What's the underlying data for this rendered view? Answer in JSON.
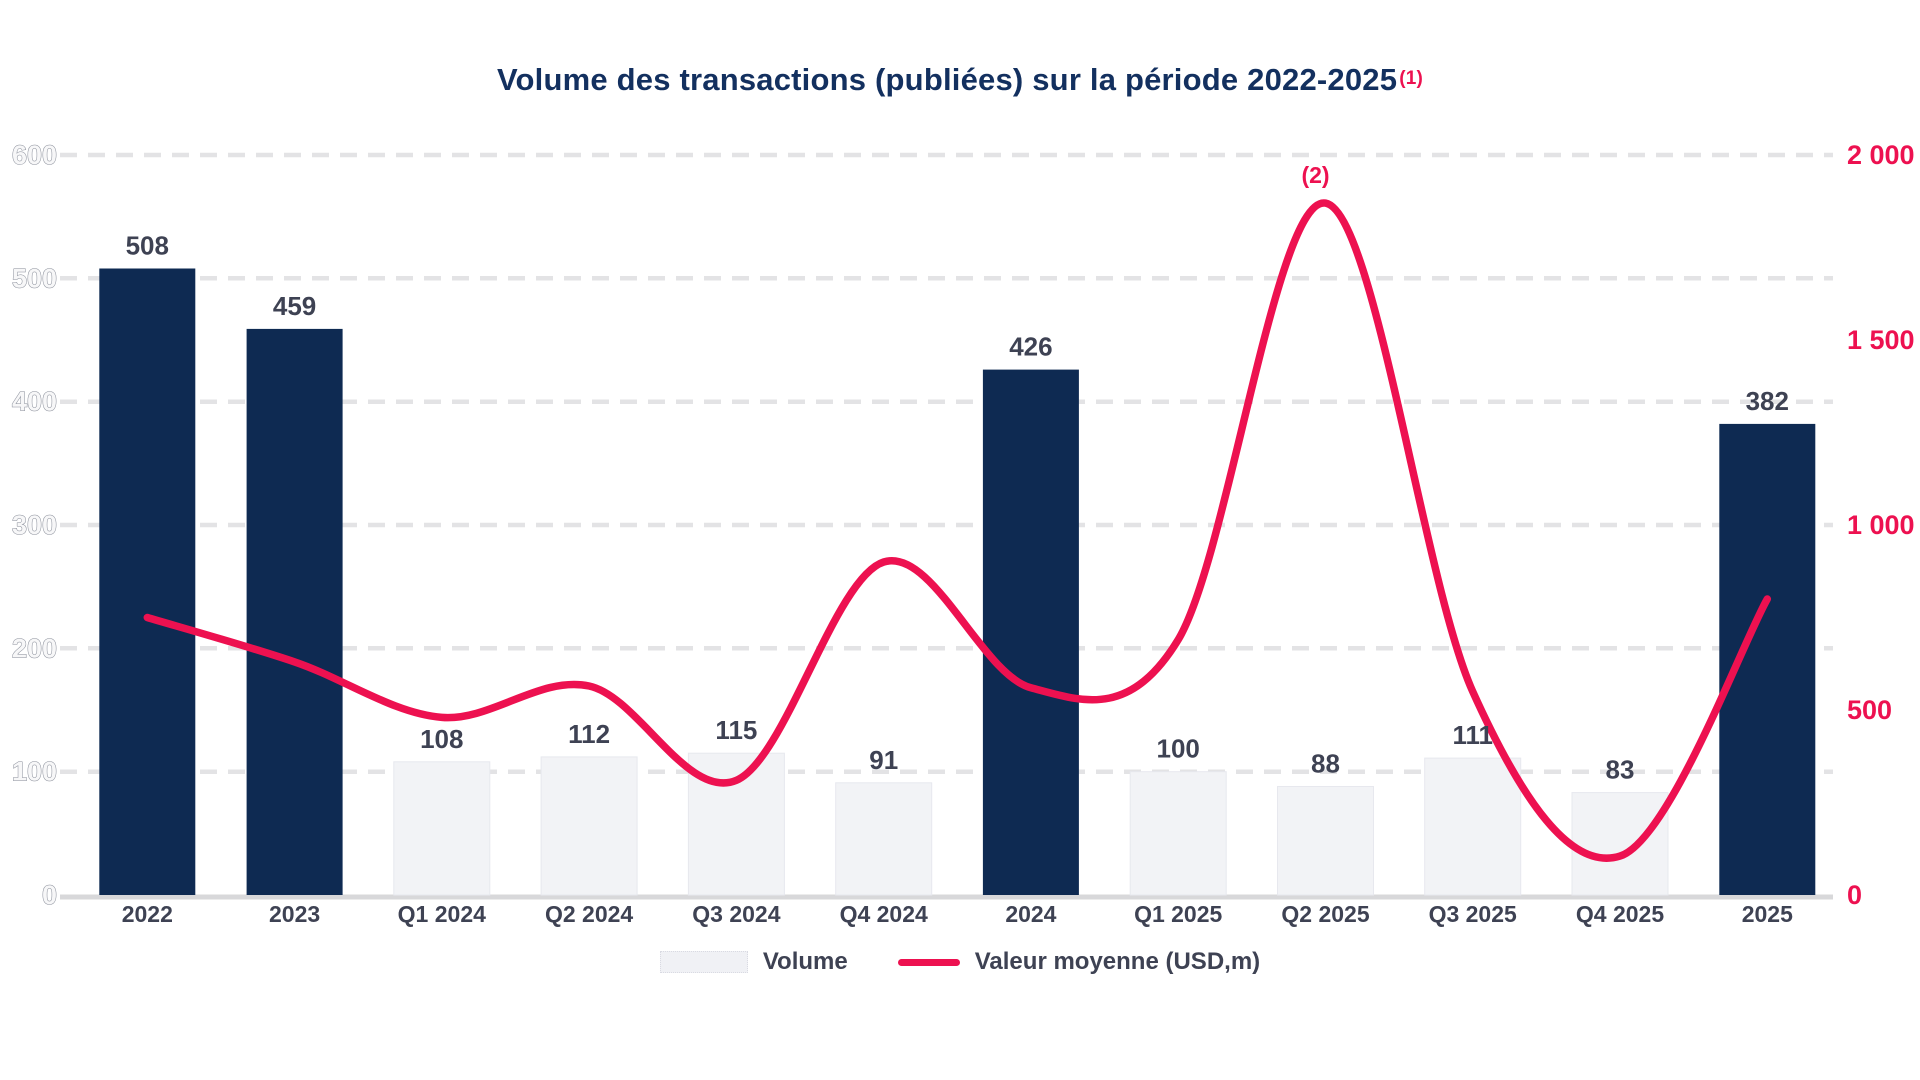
{
  "title": {
    "text": "Volume des transactions (publiées) sur la période 2022-2025",
    "superscript": "(1)"
  },
  "legend": {
    "volume_label": "Volume",
    "line_label": "Valeur moyenne (USD,m)"
  },
  "colors": {
    "navy_bar": "#0e2a52",
    "light_bar": "#f2f3f6",
    "light_bar_border": "#e7e8ee",
    "red": "#ed1150",
    "grid": "#e3e3e5",
    "baseline": "#d8d8da",
    "dark_label": "#3e4253",
    "title_navy": "#13305f"
  },
  "chart_data": {
    "type": "bar+line",
    "title": "Volume des transactions (publiées) sur la période 2022-2025 (1)",
    "categories": [
      "2022",
      "2023",
      "Q1 2024",
      "Q2 2024",
      "Q3 2024",
      "Q4 2024",
      "2024",
      "Q1 2025",
      "Q2 2025",
      "Q3 2025",
      "Q4 2025",
      "2025"
    ],
    "series": [
      {
        "name": "Volume",
        "type": "bar",
        "axis": "left",
        "values": [
          508,
          459,
          108,
          112,
          115,
          91,
          426,
          100,
          88,
          111,
          83,
          382
        ],
        "bar_styles": [
          "year",
          "year",
          "quarter",
          "quarter",
          "quarter",
          "quarter",
          "year",
          "quarter",
          "quarter",
          "quarter",
          "quarter",
          "year"
        ]
      },
      {
        "name": "Valeur moyenne (USD,m)",
        "type": "line",
        "axis": "right",
        "values": [
          750,
          630,
          480,
          565,
          310,
          900,
          560,
          690,
          1870,
          550,
          105,
          800
        ]
      }
    ],
    "left_axis": {
      "min": 0,
      "max": 600,
      "step": 100,
      "tick_labels": [
        "0",
        "100",
        "200",
        "300",
        "400",
        "500",
        "600"
      ]
    },
    "right_axis": {
      "min": 0,
      "max": 2000,
      "step": 500,
      "tick_labels": [
        "0",
        "500",
        "1 000",
        "1 500",
        "2 000"
      ]
    },
    "annotation": {
      "text": "(2)",
      "category": "Q2 2025"
    },
    "grid": "horizontal-dashed",
    "legend_position": "bottom"
  }
}
